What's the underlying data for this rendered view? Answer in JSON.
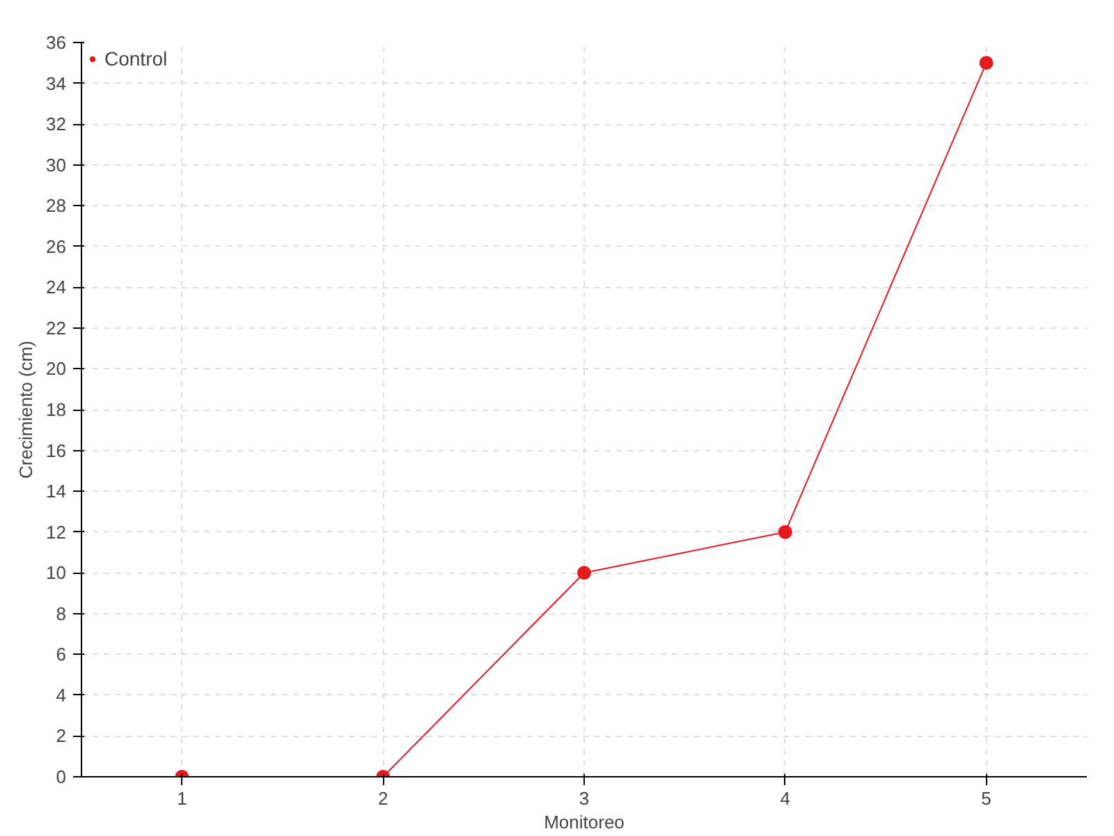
{
  "chart_data": {
    "type": "line",
    "xlabel": "Monitoreo",
    "ylabel": "Crecimiento (cm)",
    "categories": [
      "1",
      "2",
      "3",
      "4",
      "5"
    ],
    "series": [
      {
        "name": "Control",
        "color": "#e41a1c",
        "values": [
          0,
          0,
          10,
          12,
          35
        ]
      }
    ],
    "ylim": [
      0,
      36
    ],
    "yticks": [
      0,
      2,
      4,
      6,
      8,
      10,
      12,
      14,
      16,
      18,
      20,
      22,
      24,
      26,
      28,
      30,
      32,
      34,
      36
    ],
    "grid": true,
    "legend": "top left",
    "marker": "circle",
    "line_style": "solid"
  }
}
